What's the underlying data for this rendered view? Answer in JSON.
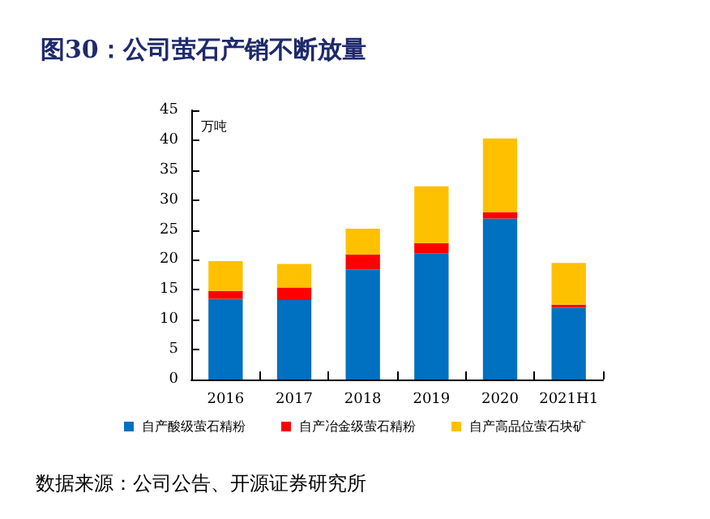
{
  "chart_data": {
    "type": "bar",
    "title": "图30：公司萤石产销不断放量",
    "ylabel": "万吨",
    "categories": [
      "2016",
      "2017",
      "2018",
      "2019",
      "2020",
      "2021H1"
    ],
    "stacked": true,
    "series": [
      {
        "name": "自产酸级萤石精粉",
        "color": "#0070c0",
        "values": [
          13.5,
          13.3,
          18.4,
          21.1,
          26.9,
          12.0
        ]
      },
      {
        "name": "自产冶金级萤石精粉",
        "color": "#ff0000",
        "values": [
          1.3,
          2.1,
          2.5,
          1.7,
          1.1,
          0.5
        ]
      },
      {
        "name": "自产高品位萤石块矿",
        "color": "#ffc000",
        "values": [
          5.0,
          3.9,
          4.3,
          9.5,
          12.3,
          7.0
        ]
      }
    ],
    "ylim": [
      0,
      45
    ],
    "yticks": [
      0,
      5,
      10,
      15,
      20,
      25,
      30,
      35,
      40,
      45
    ],
    "grid": false,
    "legend": "bottom",
    "annotations": [
      "数据来源：公司公告、开源证券研究所"
    ]
  }
}
